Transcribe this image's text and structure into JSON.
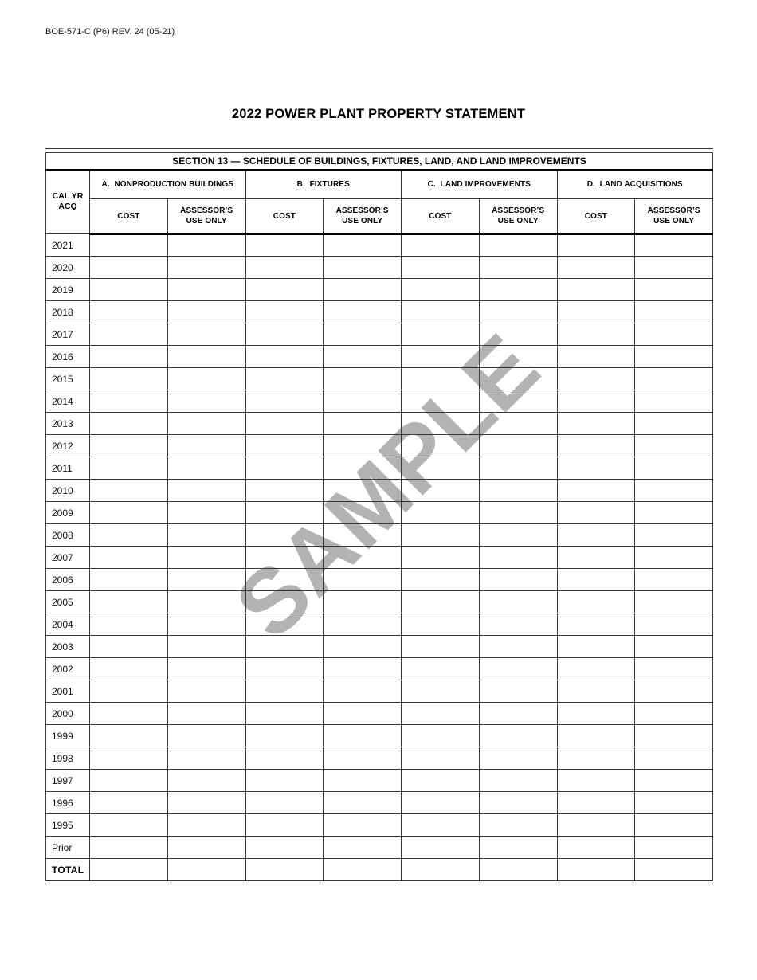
{
  "page": {
    "form_number": "BOE-571-C (P6) REV. 24 (05-21)",
    "title": "2022 POWER PLANT PROPERTY STATEMENT",
    "watermark": "SAMPLE",
    "watermark_color": "#b3b3b3"
  },
  "table": {
    "section_title": "SECTION 13 — SCHEDULE OF BUILDINGS, FIXTURES, LAND, AND LAND IMPROVEMENTS",
    "year_header": "CAL YR ACQ",
    "groups": [
      {
        "label": "A.  NONPRODUCTION BUILDINGS",
        "columns": [
          "COST",
          "ASSESSOR’S USE ONLY"
        ]
      },
      {
        "label": "B.  FIXTURES",
        "columns": [
          "COST",
          "ASSESSOR’S USE ONLY"
        ]
      },
      {
        "label": "C.  LAND IMPROVEMENTS",
        "columns": [
          "COST",
          "ASSESSOR’S USE ONLY"
        ]
      },
      {
        "label": "D.  LAND ACQUISITIONS",
        "columns": [
          "COST",
          "ASSESSOR’S USE ONLY"
        ]
      }
    ],
    "total_label": "TOTAL",
    "rows": [
      "2021",
      "2020",
      "2019",
      "2018",
      "2017",
      "2016",
      "2015",
      "2014",
      "2013",
      "2012",
      "2011",
      "2010",
      "2009",
      "2008",
      "2007",
      "2006",
      "2005",
      "2004",
      "2003",
      "2002",
      "2001",
      "2000",
      "1999",
      "1998",
      "1997",
      "1996",
      "1995",
      "Prior",
      "TOTAL"
    ],
    "cells_per_row": 8
  }
}
